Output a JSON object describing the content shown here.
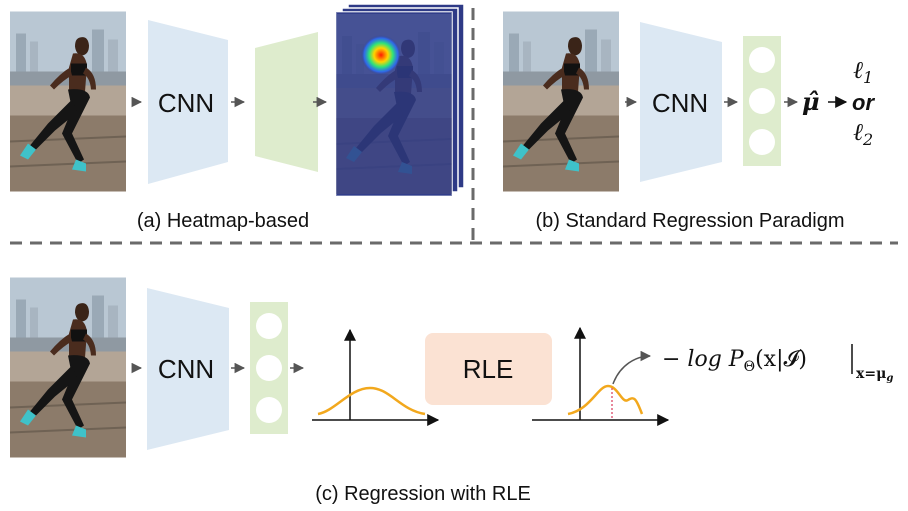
{
  "panel_a": {
    "cnn_label": "CNN",
    "caption": "(a) Heatmap-based"
  },
  "panel_b": {
    "cnn_label": "CNN",
    "mu_hat": "μ̂",
    "loss_l1": "ℓ",
    "loss_l1_sub": "1",
    "or_text": "or",
    "loss_l2": "ℓ",
    "loss_l2_sub": "2",
    "caption": "(b) Standard Regression Paradigm"
  },
  "panel_c": {
    "cnn_label": "CNN",
    "rle_label": "RLE",
    "loss_formula": "− log P",
    "theta_sub": "Θ",
    "formula_args": "(x|𝓘)",
    "eval_sub": "x=μ",
    "eval_sub_g": "g",
    "caption": "(c) Regression with RLE"
  },
  "colors": {
    "cnn_fill": "#dce8f3",
    "head_fill": "#deeccd",
    "rle_fill": "#fbe2d3",
    "curve": "#f2a81d",
    "dashed": "#6a6a6a",
    "heatmap_bg": "#2e3a86"
  },
  "icons": {
    "photo": "runner-photo-icon",
    "heatmap": "heatmap-stack-icon"
  }
}
